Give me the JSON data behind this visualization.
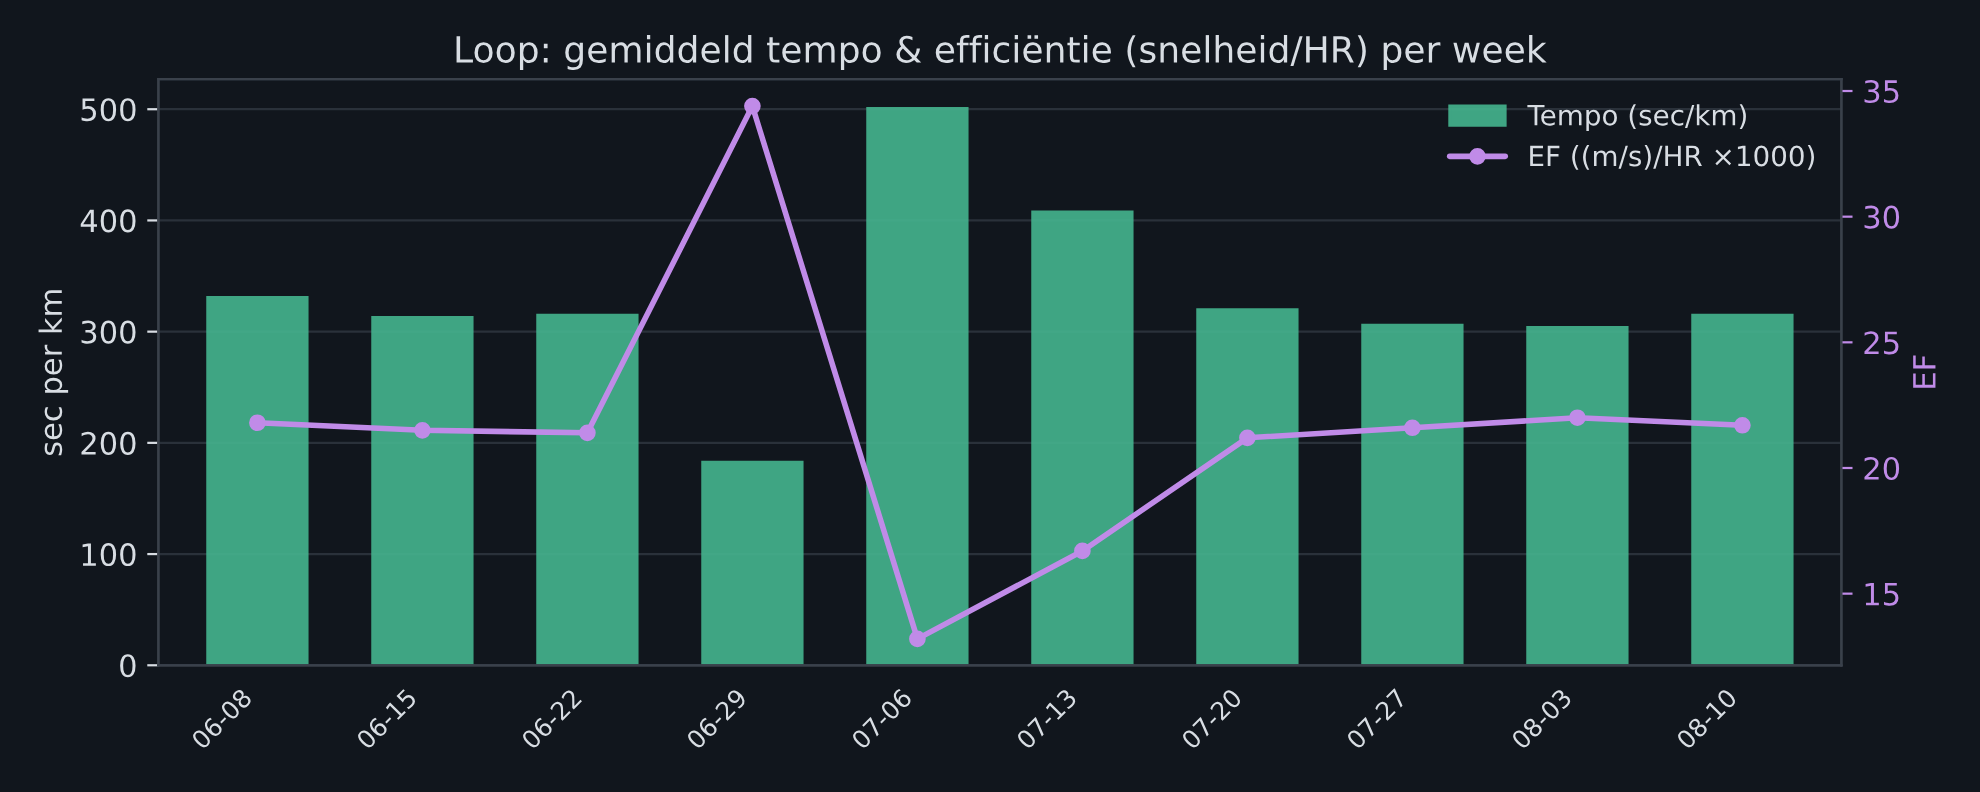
{
  "chart_data": {
    "type": "bar",
    "title": "Loop: gemiddeld tempo & efficiëntie (snelheid/HR) per week",
    "ylabel": "sec per km",
    "y2label": "EF",
    "categories": [
      "06-08",
      "06-15",
      "06-22",
      "06-29",
      "07-06",
      "07-13",
      "07-20",
      "07-27",
      "08-03",
      "08-10"
    ],
    "series": [
      {
        "name": "Tempo (sec/km)",
        "color": "#45b58f",
        "values": [
          332,
          314,
          316,
          184,
          502,
          409,
          321,
          307,
          305,
          316
        ]
      },
      {
        "name": "EF ((m/s)/HR ×1000)",
        "type": "line",
        "axis": "y2",
        "color": "#c08be8",
        "marker": "circle",
        "values": [
          21.8,
          21.5,
          21.4,
          34.4,
          13.2,
          16.7,
          21.2,
          21.6,
          22.0,
          21.7
        ]
      }
    ],
    "ylim": [
      0,
      527
    ],
    "yticks": [
      0,
      100,
      200,
      300,
      400,
      500
    ],
    "y2lim": [
      12.15,
      35.47
    ],
    "y2ticks": [
      15,
      20,
      25,
      30,
      35
    ],
    "grid": "y",
    "legend": "top right"
  }
}
